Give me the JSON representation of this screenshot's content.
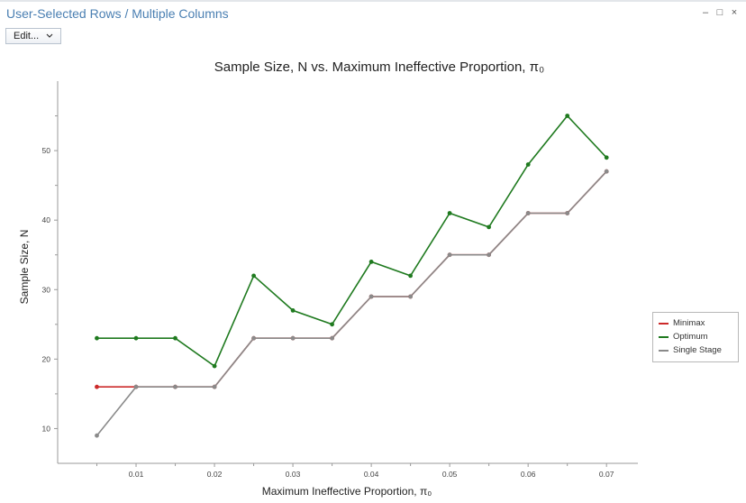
{
  "window": {
    "title": "User-Selected Rows / Multiple Columns",
    "controls": {
      "minimize": "–",
      "maximize": "□",
      "close": "×"
    }
  },
  "toolbar": {
    "edit_label": "Edit...",
    "edit_icon": "chevron-down-icon"
  },
  "colors": {
    "title": "#4a7fb2",
    "minimax": "#cc2a2a",
    "optimum": "#1f7a1f",
    "single_stage": "#8a8a8a"
  },
  "chart_data": {
    "type": "line",
    "title": "Sample Size, N vs. Maximum Ineffective Proportion, π₀",
    "xlabel": "Maximum Ineffective Proportion, π₀",
    "ylabel": "Sample Size, N",
    "x": [
      0.005,
      0.01,
      0.015,
      0.02,
      0.025,
      0.03,
      0.035,
      0.04,
      0.045,
      0.05,
      0.055,
      0.06,
      0.065,
      0.07
    ],
    "xlim": [
      0.0,
      0.074
    ],
    "ylim": [
      5,
      60
    ],
    "xticks": [
      "0.01",
      "0.02",
      "0.03",
      "0.04",
      "0.05",
      "0.06",
      "0.07"
    ],
    "xtick_values": [
      0.01,
      0.02,
      0.03,
      0.04,
      0.05,
      0.06,
      0.07
    ],
    "yticks": [
      "10",
      "20",
      "30",
      "40",
      "50"
    ],
    "ytick_values": [
      10,
      20,
      30,
      40,
      50
    ],
    "grid": false,
    "legend_position": "right",
    "series": [
      {
        "name": "Optimum",
        "color": "#1f7a1f",
        "values": [
          23,
          23,
          23,
          19,
          32,
          27,
          25,
          34,
          32,
          41,
          39,
          48,
          55,
          49
        ]
      },
      {
        "name": "Minimax",
        "color": "#cc2a2a",
        "values": [
          16,
          16,
          16,
          16,
          23,
          23,
          23,
          29,
          29,
          35,
          35,
          41,
          41,
          47
        ]
      },
      {
        "name": "Single Stage",
        "color": "#8a8a8a",
        "values": [
          9,
          16,
          16,
          16,
          23,
          23,
          23,
          29,
          29,
          35,
          35,
          41,
          41,
          47
        ]
      }
    ],
    "legend_order": [
      "Minimax",
      "Optimum",
      "Single Stage"
    ]
  }
}
